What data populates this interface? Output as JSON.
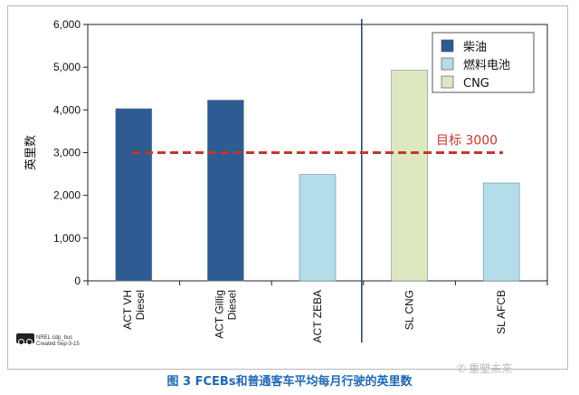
{
  "chart_data": {
    "type": "bar",
    "ylabel": "英里数",
    "ylim": [
      0,
      6000
    ],
    "yticks": [
      0,
      1000,
      2000,
      3000,
      4000,
      5000,
      6000
    ],
    "ytick_labels": [
      "0",
      "1,000",
      "2,000",
      "3,000",
      "4,000",
      "5,000",
      "6,000"
    ],
    "categories": [
      "ACT VH\nDiesel",
      "ACT Gillig\nDiesel",
      "ACT ZEBA",
      "SL CNG",
      "SL AFCB"
    ],
    "values": [
      4030,
      4230,
      2490,
      4930,
      2290
    ],
    "series_types": [
      "柴油",
      "柴油",
      "燃料电池",
      "CNG",
      "燃料电池"
    ],
    "legend": [
      {
        "name": "柴油",
        "color": "#2e5b92"
      },
      {
        "name": "燃料电池",
        "color": "#b3dde9"
      },
      {
        "name": "CNG",
        "color": "#dde8c0"
      }
    ],
    "legend_position": "top-right",
    "target": {
      "label": "目标 3000",
      "value": 3000,
      "color": "#c0392b"
    },
    "separator_after_category": 2,
    "grid": false
  },
  "caption": "图 3 FCEBs和普通客车平均每月行驶的英里数",
  "footnote": {
    "line1": "NREL cdp_bus",
    "line2": "Created Sep-3-15"
  },
  "watermark": {
    "icon": "wechat-icon",
    "text": "重塑未来"
  }
}
